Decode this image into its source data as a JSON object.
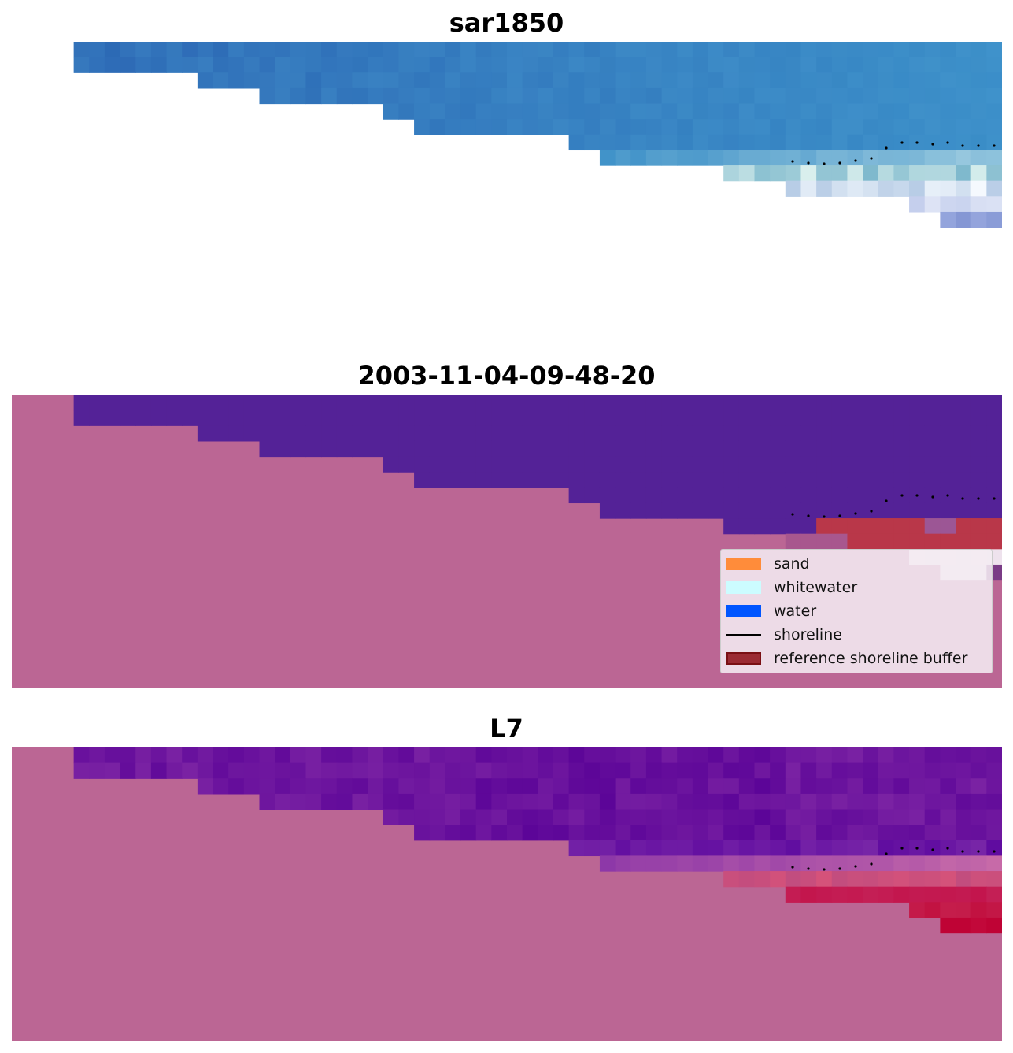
{
  "panels": [
    {
      "id": "rgb",
      "title": "sar1850"
    },
    {
      "id": "classes",
      "title": "2003-11-04-09-48-20"
    },
    {
      "id": "index",
      "title": "L7"
    }
  ],
  "legend": {
    "items": [
      {
        "label": "sand",
        "color": "#ff8c3a",
        "kind": "patch"
      },
      {
        "label": "whitewater",
        "color": "#ccfcff",
        "kind": "patch"
      },
      {
        "label": "water",
        "color": "#0055ff",
        "kind": "patch"
      },
      {
        "label": "shoreline",
        "color": "#000000",
        "kind": "line"
      },
      {
        "label": "reference shoreline buffer",
        "color": "#9b2a33",
        "kind": "patch"
      }
    ]
  },
  "colors": {
    "nodata_background": "#bb6694",
    "classified_water": "#542297",
    "buffer_overlay": "#b93749",
    "rgb_water": "#2f73b8",
    "index_water": "#650d9b",
    "index_high": "#c10f3a",
    "shoreline_points": "#000000"
  }
}
